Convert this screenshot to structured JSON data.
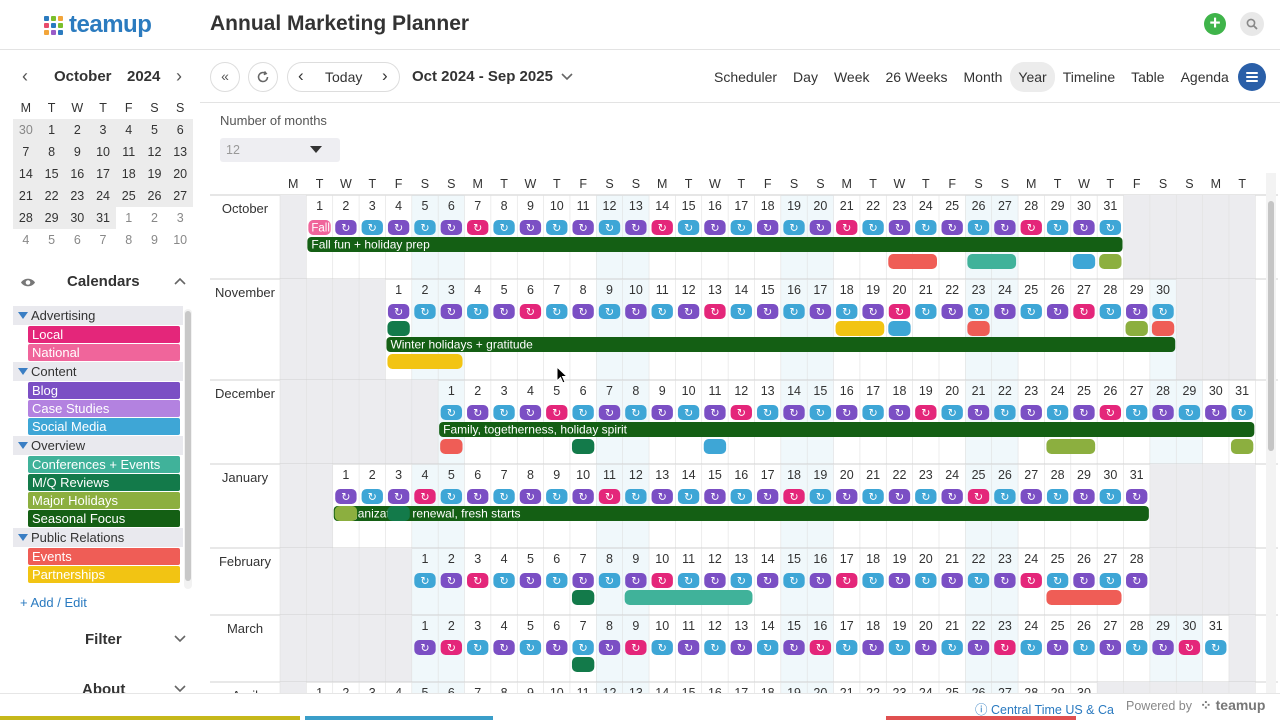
{
  "app": {
    "logo_text": "teamup",
    "title": "Annual Marketing Planner"
  },
  "mini_calendar": {
    "month": "October",
    "year": "2024",
    "weekdays": [
      "M",
      "T",
      "W",
      "T",
      "F",
      "S",
      "S"
    ],
    "weeks": [
      [
        "30",
        "1",
        "2",
        "3",
        "4",
        "5",
        "6"
      ],
      [
        "7",
        "8",
        "9",
        "10",
        "11",
        "12",
        "13"
      ],
      [
        "14",
        "15",
        "16",
        "17",
        "18",
        "19",
        "20"
      ],
      [
        "21",
        "22",
        "23",
        "24",
        "25",
        "26",
        "27"
      ],
      [
        "28",
        "29",
        "30",
        "31",
        "1",
        "2",
        "3"
      ],
      [
        "4",
        "5",
        "6",
        "7",
        "8",
        "9",
        "10"
      ]
    ]
  },
  "calendars_panel": {
    "title": "Calendars",
    "groups": [
      {
        "name": "Advertising",
        "items": [
          {
            "name": "Local",
            "color": "#e4267a"
          },
          {
            "name": "National",
            "color": "#f0659b"
          }
        ]
      },
      {
        "name": "Content",
        "items": [
          {
            "name": "Blog",
            "color": "#7b4fc4"
          },
          {
            "name": "Case Studies",
            "color": "#b382e0"
          },
          {
            "name": "Social Media",
            "color": "#3ea6d6"
          }
        ]
      },
      {
        "name": "Overview",
        "items": [
          {
            "name": "Conferences + Events",
            "color": "#40b29a"
          },
          {
            "name": "M/Q Reviews",
            "color": "#137a4a"
          },
          {
            "name": "Major Holidays",
            "color": "#8caf3f"
          },
          {
            "name": "Seasonal Focus",
            "color": "#145f14"
          }
        ]
      },
      {
        "name": "Public Relations",
        "items": [
          {
            "name": "Events",
            "color": "#ef5d56"
          },
          {
            "name": "Partnerships",
            "color": "#f2c413"
          }
        ]
      }
    ],
    "add_edit": "Add / Edit",
    "filter": "Filter",
    "about": "About"
  },
  "toolbar": {
    "today": "Today",
    "range": "Oct 2024 - Sep 2025",
    "views": [
      "Scheduler",
      "Day",
      "Week",
      "26 Weeks",
      "Month",
      "Year",
      "Timeline",
      "Table",
      "Agenda"
    ],
    "active_view": "Year"
  },
  "options": {
    "months_label": "Number of months",
    "months_value": "12"
  },
  "year_view": {
    "weekday_header": [
      "M",
      "T",
      "W",
      "T",
      "F",
      "S",
      "S",
      "M",
      "T",
      "W",
      "T",
      "F",
      "S",
      "S",
      "M",
      "T",
      "W",
      "T",
      "F",
      "S",
      "S",
      "M",
      "T",
      "W",
      "T",
      "F",
      "S",
      "S",
      "M",
      "T",
      "W",
      "T",
      "F",
      "S",
      "S",
      "M",
      "T"
    ],
    "months": [
      {
        "name": "October",
        "offset": 1,
        "days": 31,
        "range_label": "Fall fun + holiday prep"
      },
      {
        "name": "November",
        "offset": 4,
        "days": 30,
        "range_label": "Winter holidays + gratitude"
      },
      {
        "name": "December",
        "offset": 6,
        "days": 31,
        "range_label": "Family, togetherness, holiday spirit"
      },
      {
        "name": "January",
        "offset": 2,
        "days": 31,
        "range_label": "Organization, renewal, fresh starts"
      },
      {
        "name": "February",
        "offset": 5,
        "days": 28,
        "range_label": ""
      },
      {
        "name": "March",
        "offset": 5,
        "days": 31,
        "range_label": ""
      },
      {
        "name": "April",
        "offset": 1,
        "days": 30,
        "range_label": ""
      }
    ],
    "chip_label_oct": "Fall"
  },
  "footer": {
    "timezone": "Central Time US & Ca",
    "powered_by": "Powered by",
    "brand": "teamup"
  }
}
